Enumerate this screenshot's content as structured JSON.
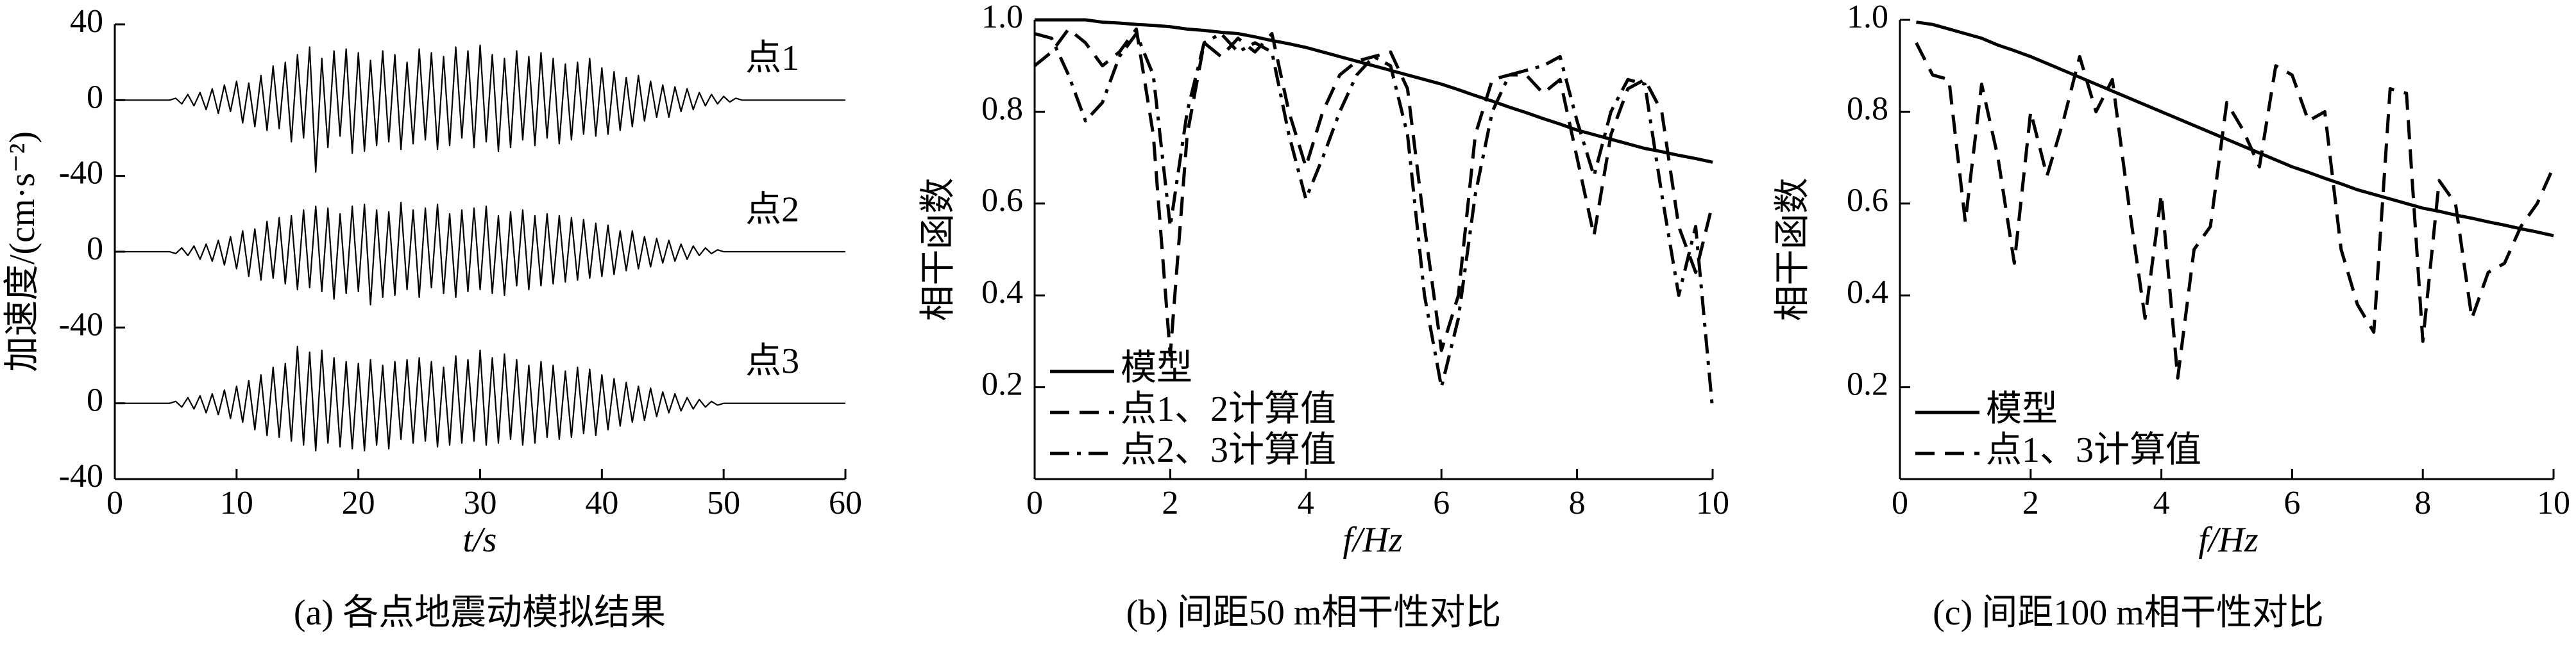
{
  "chart_data": [
    {
      "type": "stacked-line",
      "caption": "(a) 各点地震动模拟结果",
      "xlabel": "t/s",
      "ylabel": "加速度/(cm·s⁻²)",
      "xlim": [
        0,
        60
      ],
      "xticks": [
        0,
        10,
        20,
        30,
        40,
        50,
        60
      ],
      "color": "#000000",
      "x": [
        0,
        0.5,
        1,
        1.5,
        2,
        2.5,
        3,
        3.5,
        4,
        4.5,
        5,
        5.5,
        6,
        6.5,
        7,
        7.5,
        8,
        8.5,
        9,
        9.5,
        10,
        10.5,
        11,
        11.5,
        12,
        12.5,
        13,
        13.5,
        14,
        14.5,
        15,
        15.5,
        16,
        16.5,
        17,
        17.5,
        18,
        18.5,
        19,
        19.5,
        20,
        20.5,
        21,
        21.5,
        22,
        22.5,
        23,
        23.5,
        24,
        24.5,
        25,
        25.5,
        26,
        26.5,
        27,
        27.5,
        28,
        28.5,
        29,
        29.5,
        30,
        30.5,
        31,
        31.5,
        32,
        32.5,
        33,
        33.5,
        34,
        34.5,
        35,
        35.5,
        36,
        36.5,
        37,
        37.5,
        38,
        38.5,
        39,
        39.5,
        40,
        40.5,
        41,
        41.5,
        42,
        42.5,
        43,
        43.5,
        44,
        44.5,
        45,
        45.5,
        46,
        46.5,
        47,
        47.5,
        48,
        48.5,
        49,
        49.5,
        50,
        50.5,
        51,
        51.5,
        52,
        52.5,
        53,
        53.5,
        54,
        54.5,
        55,
        55.5,
        56,
        56.5,
        57,
        57.5,
        58,
        58.5,
        59,
        59.5,
        60
      ],
      "panels": [
        {
          "label": "点1",
          "ylim": [
            -40,
            40
          ],
          "yticks": [
            40,
            0,
            -40
          ],
          "values": [
            0,
            0,
            0,
            0,
            0,
            0,
            0,
            0,
            0,
            0,
            1,
            -2,
            3,
            -3,
            4,
            -5,
            6,
            -7,
            8,
            -6,
            10,
            -12,
            9,
            -14,
            13,
            -16,
            18,
            -15,
            20,
            -22,
            24,
            -20,
            28,
            -38,
            22,
            -25,
            26,
            -19,
            27,
            -28,
            25,
            -27,
            21,
            -24,
            26,
            -22,
            24,
            -26,
            20,
            -23,
            27,
            -21,
            25,
            -26,
            23,
            -24,
            28,
            -20,
            26,
            -25,
            29,
            -22,
            24,
            -27,
            22,
            -25,
            26,
            -21,
            23,
            -24,
            25,
            -20,
            22,
            -23,
            19,
            -21,
            20,
            -18,
            22,
            -19,
            17,
            -18,
            15,
            -16,
            12,
            -14,
            13,
            -11,
            10,
            -9,
            8,
            -9,
            7,
            -6,
            6,
            -5,
            4,
            -3,
            3,
            -2,
            2,
            -1,
            1,
            0,
            0,
            0,
            0,
            0,
            0,
            0,
            0,
            0,
            0,
            0,
            0,
            0,
            0,
            0,
            0,
            0,
            0
          ]
        },
        {
          "label": "点2",
          "ylim": [
            -40,
            40
          ],
          "yticks": [
            0,
            -40
          ],
          "values": [
            0,
            0,
            0,
            0,
            0,
            0,
            0,
            0,
            0,
            0,
            -1,
            2,
            -2,
            3,
            -4,
            4,
            -5,
            6,
            -7,
            8,
            -9,
            11,
            -13,
            12,
            -15,
            16,
            -14,
            18,
            -17,
            19,
            -20,
            22,
            -19,
            24,
            -21,
            23,
            -25,
            20,
            -22,
            24,
            -21,
            25,
            -28,
            22,
            -24,
            21,
            -23,
            26,
            -20,
            22,
            -24,
            23,
            -19,
            25,
            -22,
            20,
            -24,
            22,
            -21,
            23,
            -20,
            24,
            -22,
            19,
            -23,
            21,
            -18,
            22,
            -20,
            19,
            -18,
            20,
            -17,
            19,
            -16,
            18,
            -15,
            17,
            -14,
            15,
            -13,
            14,
            -12,
            11,
            -10,
            11,
            -9,
            8,
            -8,
            7,
            -6,
            6,
            -5,
            4,
            -4,
            3,
            -2,
            2,
            -1,
            1,
            0,
            0,
            0,
            0,
            0,
            0,
            0,
            0,
            0,
            0,
            0,
            0,
            0,
            0,
            0,
            0,
            0,
            0,
            0,
            0,
            0
          ]
        },
        {
          "label": "点3",
          "ylim": [
            -40,
            40
          ],
          "yticks": [
            0,
            -40
          ],
          "values": [
            0,
            0,
            0,
            0,
            0,
            0,
            0,
            0,
            0,
            0,
            1,
            -2,
            3,
            -3,
            4,
            -5,
            5,
            -6,
            7,
            -8,
            9,
            -10,
            12,
            -14,
            15,
            -17,
            19,
            -18,
            21,
            -20,
            30,
            -22,
            27,
            -25,
            28,
            -21,
            24,
            -23,
            22,
            -24,
            21,
            -25,
            23,
            -22,
            20,
            -24,
            22,
            -19,
            23,
            -21,
            24,
            -20,
            22,
            -23,
            19,
            -22,
            25,
            -21,
            23,
            -20,
            28,
            -22,
            24,
            -21,
            26,
            -19,
            23,
            -22,
            20,
            -21,
            22,
            -18,
            20,
            -19,
            17,
            -18,
            19,
            -16,
            18,
            -17,
            15,
            -14,
            13,
            -12,
            11,
            -10,
            9,
            -9,
            8,
            -7,
            6,
            -5,
            5,
            -4,
            3,
            -3,
            2,
            -2,
            1,
            -1,
            0,
            0,
            0,
            0,
            0,
            0,
            0,
            0,
            0,
            0,
            0,
            0,
            0,
            0,
            0,
            0,
            0,
            0,
            0,
            0,
            0
          ]
        }
      ]
    },
    {
      "type": "line",
      "caption": "(b) 间距50 m相干性对比",
      "xlabel": "f/Hz",
      "ylabel": "相干函数",
      "xlim": [
        0,
        10
      ],
      "xticks": [
        0,
        2,
        4,
        6,
        8,
        10
      ],
      "ylim": [
        0,
        1
      ],
      "yticks": [
        0.2,
        0.4,
        0.6,
        0.8,
        {
          "value": 1,
          "label": "1.0"
        }
      ],
      "legend": "lower left",
      "x": [
        0,
        0.25,
        0.5,
        0.75,
        1,
        1.25,
        1.5,
        1.75,
        2,
        2.25,
        2.5,
        2.75,
        3,
        3.25,
        3.5,
        3.75,
        4,
        4.25,
        4.5,
        4.75,
        5,
        5.25,
        5.5,
        5.75,
        6,
        6.25,
        6.5,
        6.75,
        7,
        7.25,
        7.5,
        7.75,
        8,
        8.25,
        8.5,
        8.75,
        9,
        9.25,
        9.5,
        9.75,
        10
      ],
      "series": [
        {
          "name": "模型",
          "color": "#000000",
          "style": "solid",
          "values": [
            1,
            1,
            1,
            1,
            0.995,
            0.993,
            0.99,
            0.988,
            0.985,
            0.98,
            0.977,
            0.973,
            0.97,
            0.963,
            0.955,
            0.948,
            0.94,
            0.93,
            0.92,
            0.91,
            0.9,
            0.89,
            0.88,
            0.87,
            0.86,
            0.848,
            0.835,
            0.823,
            0.81,
            0.798,
            0.785,
            0.773,
            0.76,
            0.75,
            0.74,
            0.73,
            0.72,
            0.713,
            0.705,
            0.698,
            0.69
          ]
        },
        {
          "name": "点1、2计算值",
          "color": "#000000",
          "style": "dashed",
          "values": [
            0.9,
            0.93,
            0.98,
            0.95,
            0.9,
            0.93,
            0.98,
            0.75,
            0.27,
            0.75,
            0.95,
            0.92,
            0.96,
            0.93,
            0.97,
            0.8,
            0.68,
            0.8,
            0.88,
            0.91,
            0.92,
            0.93,
            0.85,
            0.55,
            0.28,
            0.4,
            0.75,
            0.87,
            0.88,
            0.88,
            0.84,
            0.87,
            0.7,
            0.53,
            0.75,
            0.85,
            0.87,
            0.8,
            0.55,
            0.45,
            0.6
          ]
        },
        {
          "name": "点2、3计算值",
          "color": "#000000",
          "style": "dashdot",
          "values": [
            0.97,
            0.96,
            0.88,
            0.78,
            0.82,
            0.92,
            0.97,
            0.88,
            0.55,
            0.8,
            0.95,
            0.97,
            0.93,
            0.95,
            0.93,
            0.75,
            0.61,
            0.7,
            0.8,
            0.88,
            0.92,
            0.9,
            0.75,
            0.4,
            0.2,
            0.35,
            0.62,
            0.8,
            0.88,
            0.89,
            0.9,
            0.92,
            0.78,
            0.66,
            0.8,
            0.87,
            0.86,
            0.62,
            0.4,
            0.55,
            0.15
          ]
        }
      ]
    },
    {
      "type": "line",
      "caption": "(c) 间距100 m相干性对比",
      "xlabel": "f/Hz",
      "ylabel": "相干函数",
      "xlim": [
        0,
        10
      ],
      "xticks": [
        0,
        2,
        4,
        6,
        8,
        10
      ],
      "ylim": [
        0,
        1
      ],
      "yticks": [
        0.2,
        0.4,
        0.6,
        0.8,
        {
          "value": 1,
          "label": "1.0"
        }
      ],
      "legend": "lower left",
      "x": [
        0.25,
        0.5,
        0.75,
        1,
        1.25,
        1.5,
        1.75,
        2,
        2.25,
        2.5,
        2.75,
        3,
        3.25,
        3.5,
        3.75,
        4,
        4.25,
        4.5,
        4.75,
        5,
        5.25,
        5.5,
        5.75,
        6,
        6.25,
        6.5,
        6.75,
        7,
        7.25,
        7.5,
        7.75,
        8,
        8.25,
        8.5,
        8.75,
        9,
        9.25,
        9.5,
        9.75,
        10
      ],
      "series": [
        {
          "name": "模型",
          "color": "#000000",
          "style": "solid",
          "values": [
            0.995,
            0.99,
            0.98,
            0.97,
            0.96,
            0.945,
            0.933,
            0.92,
            0.905,
            0.89,
            0.875,
            0.86,
            0.845,
            0.83,
            0.815,
            0.8,
            0.785,
            0.77,
            0.755,
            0.74,
            0.725,
            0.71,
            0.695,
            0.68,
            0.668,
            0.655,
            0.643,
            0.63,
            0.62,
            0.61,
            0.6,
            0.59,
            0.583,
            0.575,
            0.568,
            0.56,
            0.553,
            0.545,
            0.538,
            0.53
          ]
        },
        {
          "name": "点1、3计算值",
          "color": "#000000",
          "style": "dashed",
          "values": [
            0.95,
            0.88,
            0.87,
            0.56,
            0.86,
            0.7,
            0.47,
            0.8,
            0.66,
            0.78,
            0.92,
            0.8,
            0.87,
            0.6,
            0.35,
            0.62,
            0.22,
            0.5,
            0.55,
            0.82,
            0.76,
            0.68,
            0.9,
            0.88,
            0.78,
            0.8,
            0.5,
            0.38,
            0.32,
            0.85,
            0.84,
            0.3,
            0.65,
            0.6,
            0.35,
            0.45,
            0.47,
            0.55,
            0.6,
            0.68
          ]
        }
      ]
    }
  ]
}
